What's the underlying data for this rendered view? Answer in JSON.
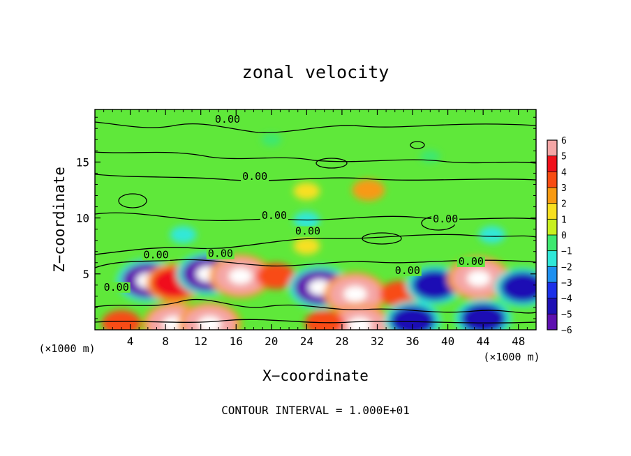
{
  "chart_data": {
    "type": "heatmap",
    "title": "zonal velocity",
    "xlabel": "X−coordinate",
    "ylabel": "Z−coordinate",
    "x_unit": "(×1000 m)",
    "z_unit": "(×1000 m)",
    "xlim": [
      0,
      50
    ],
    "ylim": [
      0,
      19.7
    ],
    "x_ticks": [
      "4",
      "8",
      "12",
      "16",
      "20",
      "24",
      "28",
      "32",
      "36",
      "40",
      "44",
      "48"
    ],
    "x_tick_values": [
      4,
      8,
      12,
      16,
      20,
      24,
      28,
      32,
      36,
      40,
      44,
      48
    ],
    "y_ticks": [
      "5",
      "10",
      "15"
    ],
    "y_tick_values": [
      5,
      10,
      15
    ],
    "colorbar": {
      "labels": [
        "6",
        "5",
        "4",
        "3",
        "2",
        "1",
        "0",
        "−1",
        "−2",
        "−3",
        "−4",
        "−5",
        "−6"
      ],
      "values": [
        6,
        5,
        4,
        3,
        2,
        1,
        0,
        -1,
        -2,
        -3,
        -4,
        -5,
        -6
      ]
    },
    "contour_labels": [
      {
        "text": "0.00",
        "x": 13.6,
        "z": 18.5
      },
      {
        "text": "0.00",
        "x": 16.7,
        "z": 13.4
      },
      {
        "text": "0.00",
        "x": 18.9,
        "z": 9.9
      },
      {
        "text": "0.00",
        "x": 22.7,
        "z": 8.5
      },
      {
        "text": "0.00",
        "x": 38.3,
        "z": 9.6
      },
      {
        "text": "0.00",
        "x": 5.5,
        "z": 6.4
      },
      {
        "text": "0.00",
        "x": 12.8,
        "z": 6.5
      },
      {
        "text": "0.00",
        "x": 1.0,
        "z": 3.5
      },
      {
        "text": "0.00",
        "x": 34.0,
        "z": 5.0
      },
      {
        "text": "0.00",
        "x": 41.2,
        "z": 5.8
      }
    ],
    "footer": "CONTOUR INTERVAL = 1.000E+01",
    "features": [
      {
        "x": 6.0,
        "z": 4.4,
        "value": -6
      },
      {
        "x": 9.0,
        "z": 4.2,
        "value": 5
      },
      {
        "x": 12.8,
        "z": 5.0,
        "value": -6
      },
      {
        "x": 16.5,
        "z": 4.8,
        "value": 6
      },
      {
        "x": 20.5,
        "z": 4.8,
        "value": 4
      },
      {
        "x": 25.5,
        "z": 3.8,
        "value": -6
      },
      {
        "x": 29.5,
        "z": 3.2,
        "value": 6
      },
      {
        "x": 34.5,
        "z": 3.2,
        "value": 4
      },
      {
        "x": 38.5,
        "z": 4.0,
        "value": -5
      },
      {
        "x": 43.5,
        "z": 4.6,
        "value": 6
      },
      {
        "x": 48.5,
        "z": 3.8,
        "value": -5
      },
      {
        "x": 9.0,
        "z": 0.5,
        "value": 6
      },
      {
        "x": 13.0,
        "z": 0.5,
        "value": 6
      },
      {
        "x": 3.0,
        "z": 0.6,
        "value": 4
      },
      {
        "x": 30.0,
        "z": 0.4,
        "value": 6
      },
      {
        "x": 26.0,
        "z": 0.6,
        "value": 4
      },
      {
        "x": 36.0,
        "z": 0.8,
        "value": -5
      },
      {
        "x": 44.0,
        "z": 1.0,
        "value": -5
      },
      {
        "x": 24.0,
        "z": 12.4,
        "value": 2
      },
      {
        "x": 31.0,
        "z": 12.5,
        "value": 3
      },
      {
        "x": 20.0,
        "z": 17.0,
        "value": -1
      },
      {
        "x": 38.0,
        "z": 15.5,
        "value": -1
      },
      {
        "x": 24.0,
        "z": 9.8,
        "value": -2
      },
      {
        "x": 10.0,
        "z": 8.5,
        "value": -2
      },
      {
        "x": 45.0,
        "z": 8.5,
        "value": -2
      },
      {
        "x": 24.0,
        "z": 7.5,
        "value": 2
      }
    ]
  }
}
